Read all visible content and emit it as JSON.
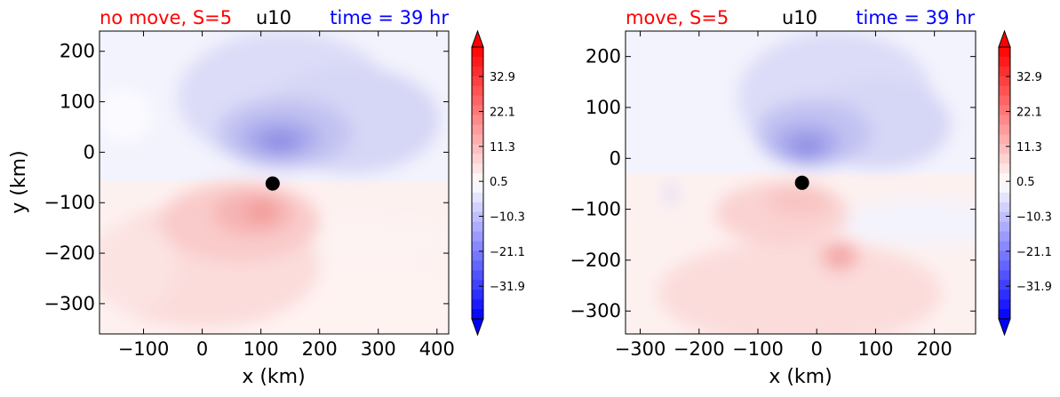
{
  "chart_data": [
    {
      "type": "heatmap",
      "title_left": "no move, S=5",
      "title_center": "u10",
      "title_right": "time = 39 hr",
      "title_left_color": "#ff0000",
      "title_center_color": "#000000",
      "title_right_color": "#0000ff",
      "xlabel": "x (km)",
      "ylabel": "y (km)",
      "xlim": [
        -175,
        420
      ],
      "ylim": [
        -360,
        240
      ],
      "xticks": [
        -100,
        0,
        100,
        200,
        300,
        400
      ],
      "xtick_labels": [
        "−100",
        "0",
        "100",
        "200",
        "300",
        "400"
      ],
      "yticks": [
        200,
        100,
        0,
        -100,
        -200,
        -300
      ],
      "ytick_labels": [
        "200",
        "100",
        "0",
        "−100",
        "−200",
        "−300"
      ],
      "storm_center": [
        120,
        -62
      ],
      "colorbar": {
        "vmin": -42,
        "vmax": 42,
        "extend": "both",
        "tick_values": [
          32.9,
          22.1,
          11.3,
          0.5,
          -10.3,
          -21.1,
          -31.9
        ],
        "tick_labels": [
          "32.9",
          "22.1",
          "11.3",
          "0.5",
          "−10.3",
          "−21.1",
          "−31.9"
        ]
      }
    },
    {
      "type": "heatmap",
      "title_left": "move, S=5",
      "title_center": "u10",
      "title_right": "time = 39 hr",
      "title_left_color": "#ff0000",
      "title_center_color": "#000000",
      "title_right_color": "#0000ff",
      "xlabel": "x (km)",
      "ylabel": "",
      "xlim": [
        -325,
        270
      ],
      "ylim": [
        -345,
        250
      ],
      "xticks": [
        -300,
        -200,
        -100,
        0,
        100,
        200
      ],
      "xtick_labels": [
        "−300",
        "−200",
        "−100",
        "0",
        "100",
        "200"
      ],
      "yticks": [
        200,
        100,
        0,
        -100,
        -200,
        -300
      ],
      "ytick_labels": [
        "200",
        "100",
        "0",
        "−100",
        "−200",
        "−300"
      ],
      "storm_center": [
        -25,
        -48
      ],
      "colorbar": {
        "vmin": -42,
        "vmax": 42,
        "extend": "both",
        "tick_values": [
          32.9,
          22.1,
          11.3,
          0.5,
          -10.3,
          -21.1,
          -31.9
        ],
        "tick_labels": [
          "32.9",
          "22.1",
          "11.3",
          "0.5",
          "−10.3",
          "−21.1",
          "−31.9"
        ]
      }
    }
  ]
}
